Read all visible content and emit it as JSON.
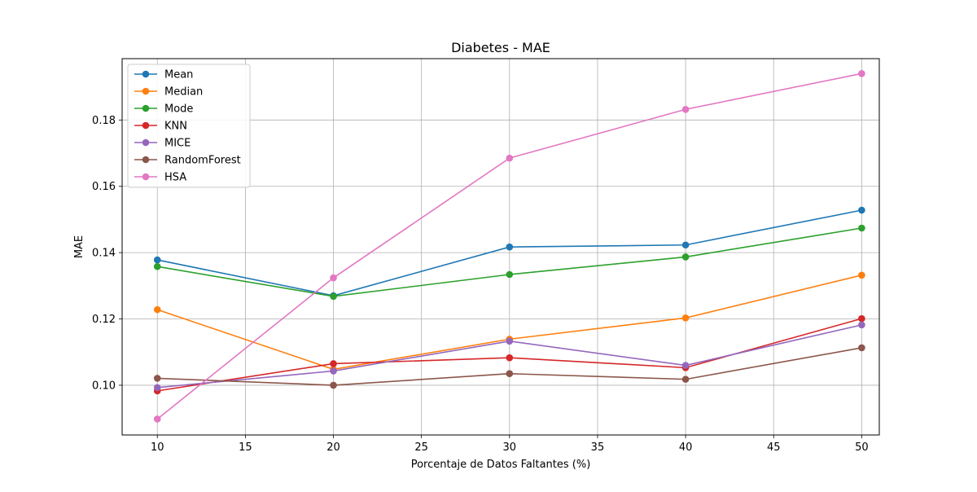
{
  "chart_data": {
    "type": "line",
    "title": "Diabetes - MAE",
    "xlabel": "Porcentaje de Datos Faltantes (%)",
    "ylabel": "MAE",
    "x": [
      10,
      20,
      30,
      40,
      50
    ],
    "xlim": [
      8,
      51
    ],
    "ylim": [
      0.085,
      0.1985
    ],
    "xticks": [
      10,
      15,
      20,
      25,
      30,
      35,
      40,
      45,
      50
    ],
    "xtick_labels": [
      "10",
      "15",
      "20",
      "25",
      "30",
      "35",
      "40",
      "45",
      "50"
    ],
    "yticks": [
      0.1,
      0.12,
      0.14,
      0.16,
      0.18
    ],
    "ytick_labels": [
      "0.10",
      "0.12",
      "0.14",
      "0.16",
      "0.18"
    ],
    "grid": true,
    "legend_position": "top-left",
    "series": [
      {
        "name": "Mean",
        "color": "#1f77b4",
        "values": [
          0.1378,
          0.127,
          0.1417,
          0.1423,
          0.1528
        ]
      },
      {
        "name": "Median",
        "color": "#ff7f0e",
        "values": [
          0.1228,
          0.1048,
          0.1139,
          0.1203,
          0.1332
        ]
      },
      {
        "name": "Mode",
        "color": "#2ca02c",
        "values": [
          0.1358,
          0.1268,
          0.1334,
          0.1387,
          0.1474
        ]
      },
      {
        "name": "KNN",
        "color": "#d62728",
        "values": [
          0.0983,
          0.1065,
          0.1083,
          0.1053,
          0.1201
        ]
      },
      {
        "name": "MICE",
        "color": "#9467bd",
        "values": [
          0.0993,
          0.1043,
          0.1133,
          0.106,
          0.1182
        ]
      },
      {
        "name": "RandomForest",
        "color": "#8c564b",
        "values": [
          0.1021,
          0.1,
          0.1035,
          0.1018,
          0.1113
        ]
      },
      {
        "name": "HSA",
        "color": "#e377c2",
        "values": [
          0.0898,
          0.1324,
          0.1685,
          0.1832,
          0.194
        ]
      }
    ]
  }
}
